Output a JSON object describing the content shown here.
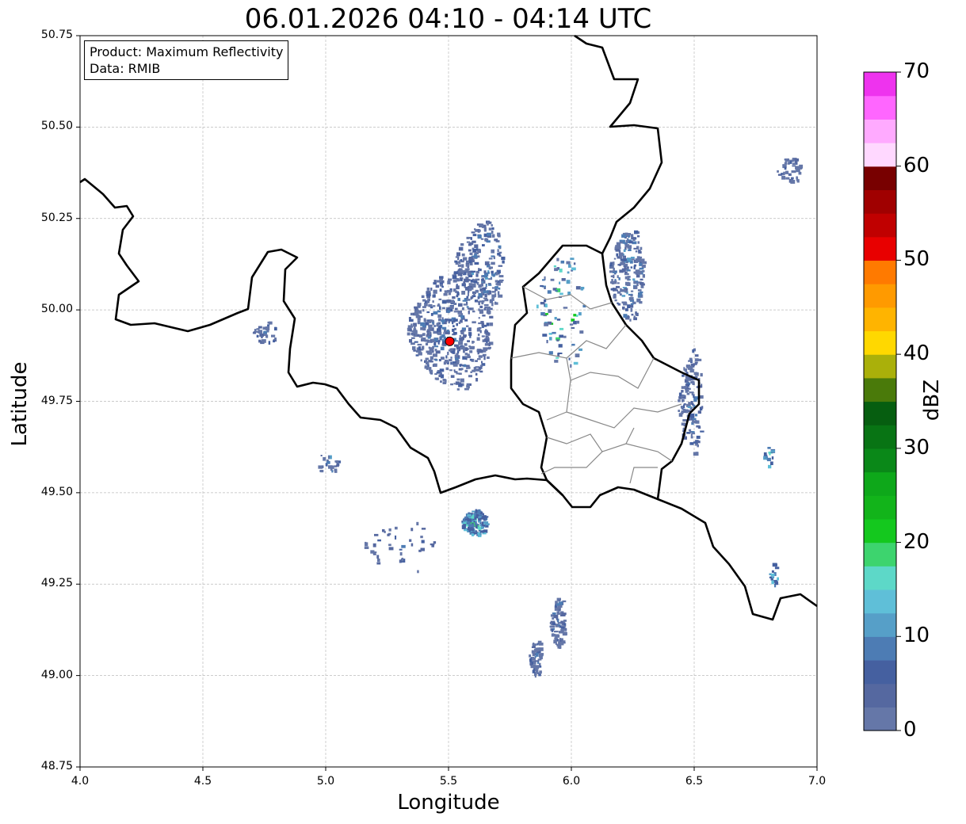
{
  "chart_data": {
    "type": "heatmap",
    "title": "06.01.2026 04:10 - 04:14 UTC",
    "xlabel": "Longitude",
    "ylabel": "Latitude",
    "xlim": [
      4.0,
      7.0
    ],
    "ylim": [
      48.75,
      50.75
    ],
    "xticks": [
      "4.0",
      "4.5",
      "5.0",
      "5.5",
      "6.0",
      "6.5",
      "7.0"
    ],
    "yticks": [
      "48.75",
      "49.00",
      "49.25",
      "49.50",
      "49.75",
      "50.00",
      "50.25",
      "50.50",
      "50.75"
    ],
    "grid": true,
    "info": {
      "product": "Product: Maximum Reflectivity",
      "data": "Data: RMIB"
    },
    "radar_site": {
      "lon": 5.505,
      "lat": 49.914,
      "color": "#ff0000"
    },
    "colorbar": {
      "label": "dBZ",
      "range": [
        0,
        70
      ],
      "step": 2.5,
      "ticks": [
        "0",
        "10",
        "20",
        "30",
        "40",
        "50",
        "60",
        "70"
      ],
      "colors": [
        "#6577a8",
        "#5568a0",
        "#4560a0",
        "#4d7cb4",
        "#569fc8",
        "#5fbfd8",
        "#5dd8c8",
        "#3dd46e",
        "#14c81e",
        "#12b41a",
        "#0ea81a",
        "#0a8818",
        "#087414",
        "#065e10",
        "#4a7a0a",
        "#aab00a",
        "#ffd800",
        "#ffb400",
        "#ff9a00",
        "#ff7a00",
        "#e80000",
        "#c00000",
        "#a00000",
        "#780000",
        "#ffd8ff",
        "#ffaaff",
        "#ff66ff",
        "#ee33ee"
      ]
    },
    "echo_clusters": [
      {
        "lon": 5.5,
        "lat": 49.95,
        "rlon": 0.17,
        "rlat": 0.16,
        "n": 520,
        "dbz": [
          0,
          12
        ]
      },
      {
        "lon": 5.62,
        "lat": 50.12,
        "rlon": 0.1,
        "rlat": 0.12,
        "n": 220,
        "dbz": [
          0,
          14
        ]
      },
      {
        "lon": 5.6,
        "lat": 49.42,
        "rlon": 0.05,
        "rlat": 0.035,
        "n": 160,
        "dbz": [
          5,
          22
        ]
      },
      {
        "lon": 5.94,
        "lat": 49.15,
        "rlon": 0.03,
        "rlat": 0.07,
        "n": 90,
        "dbz": [
          0,
          14
        ]
      },
      {
        "lon": 5.85,
        "lat": 49.05,
        "rlon": 0.025,
        "rlat": 0.05,
        "n": 60,
        "dbz": [
          0,
          12
        ]
      },
      {
        "lon": 6.22,
        "lat": 50.1,
        "rlon": 0.07,
        "rlat": 0.12,
        "n": 200,
        "dbz": [
          0,
          16
        ]
      },
      {
        "lon": 6.48,
        "lat": 49.75,
        "rlon": 0.05,
        "rlat": 0.14,
        "n": 150,
        "dbz": [
          0,
          12
        ]
      },
      {
        "lon": 6.88,
        "lat": 50.38,
        "rlon": 0.05,
        "rlat": 0.04,
        "n": 40,
        "dbz": [
          0,
          10
        ]
      },
      {
        "lon": 4.75,
        "lat": 49.94,
        "rlon": 0.05,
        "rlat": 0.03,
        "n": 30,
        "dbz": [
          0,
          14
        ]
      },
      {
        "lon": 5.95,
        "lat": 50.0,
        "rlon": 0.1,
        "rlat": 0.15,
        "n": 80,
        "dbz": [
          0,
          30
        ]
      },
      {
        "lon": 5.0,
        "lat": 49.58,
        "rlon": 0.05,
        "rlat": 0.03,
        "n": 25,
        "dbz": [
          0,
          18
        ]
      },
      {
        "lon": 6.8,
        "lat": 49.6,
        "rlon": 0.02,
        "rlat": 0.03,
        "n": 15,
        "dbz": [
          5,
          20
        ]
      },
      {
        "lon": 6.82,
        "lat": 49.28,
        "rlon": 0.02,
        "rlat": 0.03,
        "n": 15,
        "dbz": [
          5,
          20
        ]
      },
      {
        "lon": 5.3,
        "lat": 49.35,
        "rlon": 0.15,
        "rlat": 0.07,
        "n": 40,
        "dbz": [
          0,
          10
        ]
      }
    ]
  }
}
